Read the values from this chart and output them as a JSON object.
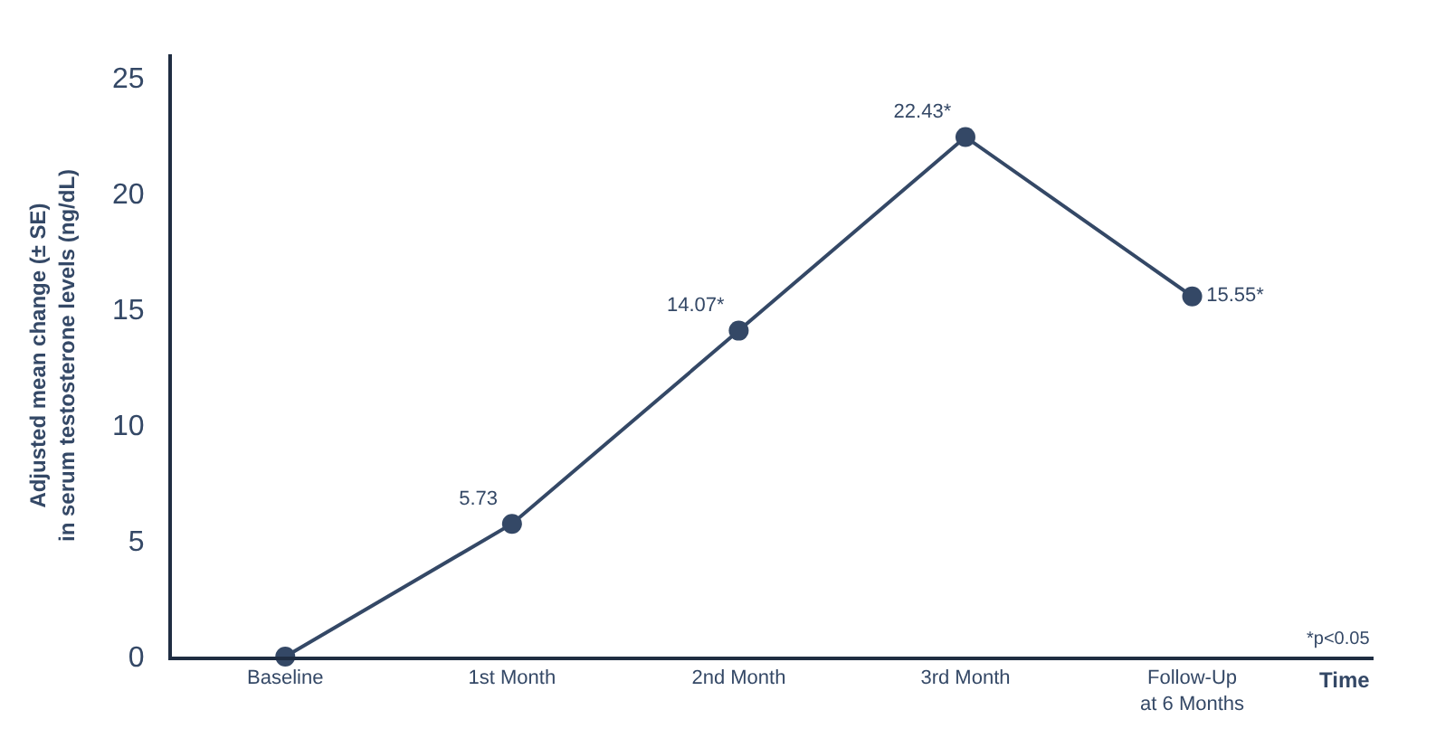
{
  "chart_data": {
    "type": "line",
    "xlabel": "Time",
    "ylabel": "Adjusted mean change (± SE)\nin serum testosterone levels (ng/dL)",
    "categories": [
      "Baseline",
      "1st Month",
      "2nd Month",
      "3rd Month",
      "Follow-Up\nat 6 Months"
    ],
    "series": [
      {
        "color": "#344866",
        "values": [
          0,
          5.73,
          14.07,
          22.43,
          15.55
        ],
        "value_labels": [
          null,
          "5.73",
          "14.07*",
          "22.43*",
          "15.55*"
        ]
      }
    ],
    "ylim": [
      0,
      26
    ],
    "yticks": [
      0,
      5,
      10,
      15,
      20,
      25
    ],
    "annotations": [
      "*p<0.05"
    ],
    "marker": "circle",
    "line_style": "solid"
  }
}
